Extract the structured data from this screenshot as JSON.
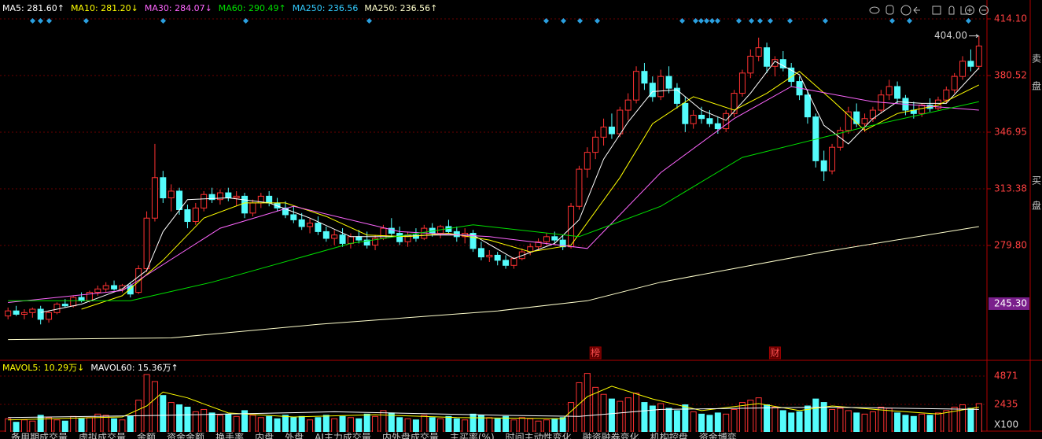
{
  "chart_data": {
    "type": "candlestick",
    "ylim": [
      211.7,
      425.3
    ],
    "yticks": [
      {
        "value": 414.1,
        "label": "414.10"
      },
      380.52,
      346.95,
      313.38,
      {
        "value": 279.8,
        "label": "279.80"
      }
    ],
    "highlight_tick": {
      "value": 245.3,
      "label": "245.30"
    },
    "max_label": {
      "value": 404,
      "label": "404.00"
    },
    "up_color": "#ff3232",
    "down_color": "#54fcfc",
    "grid": true,
    "candles": [
      [
        238,
        243,
        236,
        241
      ],
      [
        241,
        244,
        238,
        239
      ],
      [
        239,
        242,
        236,
        240
      ],
      [
        240,
        243,
        237,
        242
      ],
      [
        242,
        244,
        233,
        236
      ],
      [
        236,
        241,
        234,
        240
      ],
      [
        240,
        246,
        239,
        245
      ],
      [
        245,
        248,
        243,
        244
      ],
      [
        244,
        250,
        243,
        249
      ],
      [
        249,
        252,
        246,
        247
      ],
      [
        247,
        253,
        246,
        252
      ],
      [
        252,
        256,
        250,
        254
      ],
      [
        254,
        258,
        252,
        256
      ],
      [
        256,
        259,
        253,
        254
      ],
      [
        254,
        257,
        252,
        256
      ],
      [
        256,
        258,
        249,
        251
      ],
      [
        252,
        268,
        251,
        266
      ],
      [
        266,
        300,
        264,
        296
      ],
      [
        296,
        340,
        294,
        320
      ],
      [
        320,
        324,
        305,
        308
      ],
      [
        308,
        316,
        300,
        312
      ],
      [
        312,
        314,
        298,
        301
      ],
      [
        301,
        304,
        290,
        294
      ],
      [
        294,
        305,
        292,
        302
      ],
      [
        302,
        312,
        300,
        310
      ],
      [
        310,
        314,
        305,
        307
      ],
      [
        307,
        313,
        304,
        311
      ],
      [
        311,
        314,
        306,
        308
      ],
      [
        308,
        312,
        303,
        309
      ],
      [
        309,
        311,
        296,
        299
      ],
      [
        299,
        307,
        297,
        305
      ],
      [
        305,
        311,
        302,
        309
      ],
      [
        309,
        312,
        303,
        305
      ],
      [
        305,
        308,
        300,
        302
      ],
      [
        302,
        306,
        296,
        298
      ],
      [
        298,
        303,
        293,
        295
      ],
      [
        295,
        299,
        289,
        291
      ],
      [
        291,
        296,
        287,
        293
      ],
      [
        293,
        297,
        286,
        288
      ],
      [
        288,
        291,
        282,
        284
      ],
      [
        284,
        289,
        280,
        286
      ],
      [
        286,
        290,
        279,
        281
      ],
      [
        281,
        287,
        278,
        285
      ],
      [
        285,
        289,
        281,
        283
      ],
      [
        283,
        288,
        278,
        280
      ],
      [
        280,
        286,
        277,
        284
      ],
      [
        284,
        292,
        283,
        290
      ],
      [
        290,
        296,
        285,
        287
      ],
      [
        287,
        291,
        280,
        282
      ],
      [
        282,
        288,
        279,
        286
      ],
      [
        286,
        290,
        282,
        284
      ],
      [
        284,
        292,
        283,
        290
      ],
      [
        290,
        293,
        285,
        287
      ],
      [
        287,
        292,
        284,
        291
      ],
      [
        291,
        295,
        287,
        288
      ],
      [
        288,
        291,
        282,
        285
      ],
      [
        285,
        290,
        281,
        287
      ],
      [
        287,
        289,
        276,
        278
      ],
      [
        278,
        282,
        271,
        273
      ],
      [
        273,
        277,
        270,
        274
      ],
      [
        274,
        276,
        268,
        271
      ],
      [
        271,
        274,
        266,
        268
      ],
      [
        268,
        273,
        266,
        272
      ],
      [
        272,
        278,
        271,
        276
      ],
      [
        276,
        281,
        274,
        279
      ],
      [
        279,
        284,
        277,
        282
      ],
      [
        282,
        287,
        280,
        285
      ],
      [
        285,
        288,
        281,
        283
      ],
      [
        283,
        286,
        277,
        279
      ],
      [
        279,
        305,
        278,
        303
      ],
      [
        303,
        327,
        301,
        325
      ],
      [
        325,
        338,
        320,
        335
      ],
      [
        335,
        348,
        331,
        344
      ],
      [
        344,
        355,
        339,
        350
      ],
      [
        350,
        358,
        343,
        346
      ],
      [
        346,
        362,
        344,
        360
      ],
      [
        360,
        370,
        354,
        366
      ],
      [
        366,
        386,
        364,
        383
      ],
      [
        383,
        388,
        372,
        376
      ],
      [
        376,
        380,
        365,
        368
      ],
      [
        368,
        384,
        366,
        380
      ],
      [
        380,
        386,
        370,
        373
      ],
      [
        373,
        376,
        361,
        364
      ],
      [
        364,
        368,
        347,
        352
      ],
      [
        352,
        360,
        349,
        357
      ],
      [
        357,
        362,
        352,
        355
      ],
      [
        355,
        360,
        350,
        352
      ],
      [
        352,
        356,
        346,
        349
      ],
      [
        349,
        360,
        347,
        358
      ],
      [
        358,
        372,
        356,
        370
      ],
      [
        370,
        384,
        368,
        382
      ],
      [
        382,
        396,
        379,
        392
      ],
      [
        392,
        403,
        389,
        397
      ],
      [
        397,
        400,
        382,
        386
      ],
      [
        386,
        392,
        380,
        390
      ],
      [
        390,
        395,
        383,
        385
      ],
      [
        385,
        388,
        374,
        377
      ],
      [
        377,
        380,
        366,
        369
      ],
      [
        369,
        372,
        352,
        356
      ],
      [
        356,
        358,
        326,
        330
      ],
      [
        330,
        336,
        318,
        324
      ],
      [
        324,
        340,
        322,
        338
      ],
      [
        338,
        350,
        336,
        348
      ],
      [
        348,
        362,
        346,
        359
      ],
      [
        359,
        364,
        350,
        352
      ],
      [
        352,
        358,
        347,
        355
      ],
      [
        355,
        362,
        353,
        360
      ],
      [
        360,
        372,
        358,
        369
      ],
      [
        369,
        378,
        366,
        374
      ],
      [
        374,
        377,
        364,
        367
      ],
      [
        367,
        369,
        357,
        360
      ],
      [
        360,
        365,
        355,
        358
      ],
      [
        358,
        364,
        356,
        363
      ],
      [
        363,
        367,
        359,
        361
      ],
      [
        361,
        368,
        360,
        366
      ],
      [
        366,
        374,
        364,
        372
      ],
      [
        372,
        382,
        370,
        380
      ],
      [
        380,
        392,
        378,
        389
      ],
      [
        389,
        396,
        383,
        386
      ],
      [
        386,
        404,
        384,
        398
      ]
    ],
    "ma_series": [
      {
        "name": "MA5: 281.60↑",
        "color": "#ffffff",
        "x": [
          4,
          9,
          14,
          17,
          19,
          22,
          27,
          32,
          37,
          42,
          47,
          52,
          57,
          62,
          67,
          70,
          73,
          76,
          79,
          82,
          85,
          88,
          91,
          94,
          97,
          100,
          103,
          106,
          109,
          112,
          115,
          119
        ],
        "values": [
          240,
          245,
          254,
          265,
          288,
          307,
          308,
          305,
          296,
          285,
          285,
          286,
          286,
          272,
          281,
          295,
          331,
          353,
          371,
          372,
          360,
          354,
          370,
          389,
          381,
          351,
          340,
          355,
          365,
          364,
          364,
          385
        ]
      },
      {
        "name": "MA10: 281.20↓",
        "color": "#ffff00",
        "x": [
          9,
          14,
          19,
          24,
          29,
          34,
          39,
          44,
          49,
          54,
          59,
          64,
          69,
          72,
          75,
          79,
          84,
          89,
          93,
          97,
          101,
          105,
          109,
          114,
          119
        ],
        "values": [
          242,
          250,
          271,
          296,
          305,
          305,
          297,
          286,
          285,
          287,
          283,
          276,
          280,
          300,
          320,
          352,
          368,
          360,
          370,
          383,
          366,
          348,
          358,
          363,
          375
        ]
      },
      {
        "name": "MA30: 284.07↓",
        "color": "#ff66ff",
        "x": [
          0,
          14,
          26,
          35,
          48,
          59,
          71,
          80,
          89,
          96,
          106,
          119
        ],
        "values": [
          246,
          253,
          290,
          303,
          288,
          285,
          278,
          323,
          355,
          374,
          365,
          360
        ]
      },
      {
        "name": "MA60: 290.49↑",
        "color": "#00e000",
        "x": [
          0,
          15,
          25,
          42,
          57,
          70,
          80,
          90,
          105,
          119
        ],
        "values": [
          247,
          247,
          258,
          281,
          292,
          285,
          303,
          332,
          350,
          365
        ]
      },
      {
        "name": "MA250: 236.56↑",
        "color": "#ffffcc",
        "x": [
          0,
          20,
          38,
          60,
          71,
          80,
          100,
          119
        ],
        "values": [
          224,
          225,
          233,
          241,
          247,
          258,
          276,
          291
        ]
      }
    ],
    "legend_extra": {
      "name": "MA250: 236.56",
      "color": "#33ccff"
    },
    "markers": [
      {
        "index": 72,
        "text": "榜"
      },
      {
        "index": 94,
        "text": "财"
      }
    ],
    "volume": {
      "ylim": [
        0,
        5750
      ],
      "yticks": [
        4871,
        2435
      ],
      "unit": "X100",
      "values": [
        1200,
        900,
        1100,
        1000,
        1500,
        1300,
        1100,
        1000,
        1400,
        1200,
        1300,
        1600,
        1500,
        1200,
        1100,
        1400,
        2800,
        5000,
        4400,
        3200,
        2600,
        2400,
        2200,
        1800,
        2000,
        1700,
        1500,
        1600,
        1400,
        1900,
        1500,
        1300,
        1400,
        1200,
        1500,
        1300,
        1400,
        1100,
        1300,
        1500,
        1200,
        1400,
        1300,
        1200,
        1600,
        1400,
        1900,
        1700,
        1300,
        1200,
        1100,
        1500,
        1300,
        1200,
        1400,
        1200,
        1100,
        1600,
        1500,
        1300,
        1200,
        1400,
        1100,
        1300,
        1200,
        1000,
        1100,
        1200,
        1300,
        2600,
        4300,
        5100,
        3900,
        3300,
        2900,
        2700,
        3000,
        3400,
        2600,
        2300,
        2500,
        2100,
        1900,
        2400,
        1800,
        1600,
        1500,
        1700,
        1600,
        2000,
        2600,
        2800,
        3000,
        2400,
        2200,
        1900,
        1700,
        1800,
        2300,
        2900,
        2600,
        2000,
        2100,
        1900,
        1700,
        1600,
        1800,
        2200,
        2100,
        1700,
        1500,
        1400,
        1600,
        1500,
        1700,
        1900,
        2200,
        2400,
        2100,
        2500
      ],
      "ma_series": [
        {
          "name": "MAVOL5: 10.29万↓",
          "color": "#ffff00",
          "x": [
            0,
            8,
            14,
            17,
            19,
            22,
            27,
            35,
            45,
            55,
            62,
            68,
            71,
            74,
            79,
            85,
            92,
            97,
            101,
            108,
            114,
            119
          ],
          "values": [
            1100,
            1250,
            1350,
            2300,
            3500,
            3000,
            1700,
            1350,
            1550,
            1300,
            1250,
            1200,
            3100,
            4000,
            2900,
            1900,
            2500,
            1900,
            2300,
            1900,
            1600,
            2200
          ]
        },
        {
          "name": "MAVOL60: 15.36万↑",
          "color": "#ffffff",
          "x": [
            0,
            20,
            40,
            60,
            70,
            80,
            100,
            119
          ],
          "values": [
            1300,
            1500,
            1800,
            1500,
            1400,
            2000,
            2200,
            2000
          ]
        }
      ]
    },
    "sidebar": [
      "卖",
      "盘",
      "买",
      "盘"
    ],
    "tabs": [
      "备用期成交量",
      "虚拟成交量",
      "金额",
      "资金金额",
      "换手率",
      "内盘",
      "外盘",
      "AI主力成交量",
      "内外盘成交量",
      "主买率(%)",
      "时间主动性变化",
      "融资融券变化",
      "机构控盘",
      "资金博弈"
    ]
  }
}
